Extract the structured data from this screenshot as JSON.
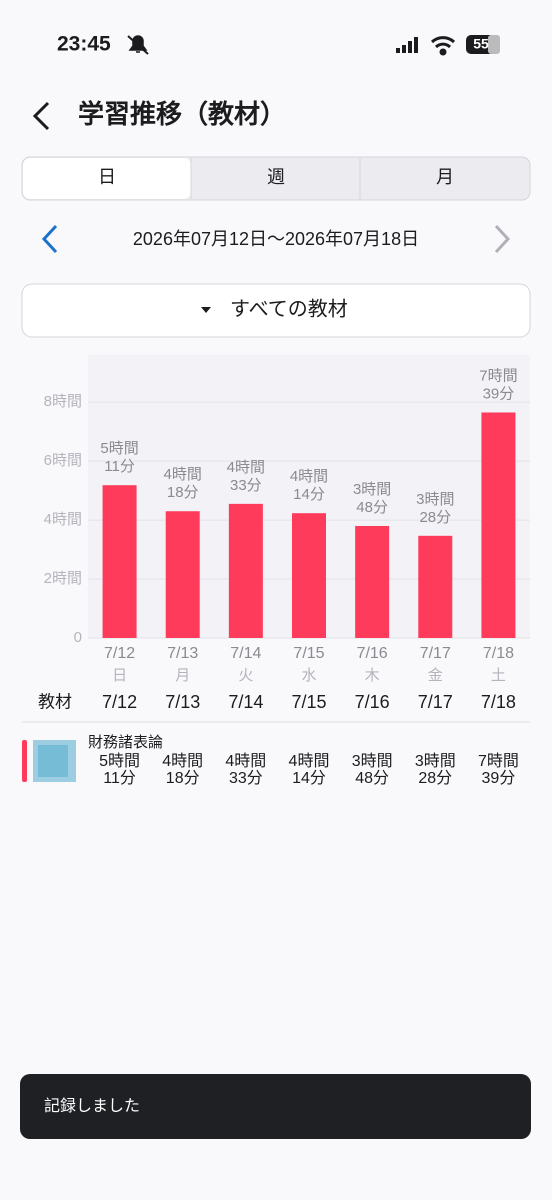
{
  "status_bar": {
    "time": "23:45",
    "battery": "55"
  },
  "header": {
    "title": "学習推移（教材）"
  },
  "tabs": [
    "日",
    "週",
    "月"
  ],
  "date_range": "2026年07月12日〜2026年07月18日",
  "filter": "すべての教材",
  "chart_data": {
    "type": "bar",
    "categories": [
      "7/12",
      "7/13",
      "7/14",
      "7/15",
      "7/16",
      "7/17",
      "7/18"
    ],
    "weekdays": [
      "日",
      "月",
      "火",
      "水",
      "木",
      "金",
      "土"
    ],
    "values": [
      5.1833,
      4.3,
      4.55,
      4.2333,
      3.8,
      3.4667,
      7.65
    ],
    "value_labels": [
      [
        "5時間",
        "11分"
      ],
      [
        "4時間",
        "18分"
      ],
      [
        "4時間",
        "33分"
      ],
      [
        "4時間",
        "14分"
      ],
      [
        "3時間",
        "48分"
      ],
      [
        "3時間",
        "28分"
      ],
      [
        "7時間",
        "39分"
      ]
    ],
    "color": "#ff3b5c",
    "ylim": [
      0,
      9.6
    ],
    "yticks": [
      0,
      {
        "value": 2,
        "label": "2時間"
      },
      {
        "value": 4,
        "label": "4時間"
      },
      {
        "value": 6,
        "label": "6時間"
      },
      {
        "value": 8,
        "label": "8時間"
      }
    ],
    "grid": true
  },
  "table": {
    "header": "教材",
    "columns": [
      "7/12",
      "7/13",
      "7/14",
      "7/15",
      "7/16",
      "7/17",
      "7/18"
    ],
    "rows": [
      {
        "name": "財務諸表論",
        "cells": [
          [
            "5時間",
            "11分"
          ],
          [
            "4時間",
            "18分"
          ],
          [
            "4時間",
            "33分"
          ],
          [
            "4時間",
            "14分"
          ],
          [
            "3時間",
            "48分"
          ],
          [
            "3時間",
            "28分"
          ],
          [
            "7時間",
            "39分"
          ]
        ]
      }
    ]
  },
  "toast": "記録しました"
}
